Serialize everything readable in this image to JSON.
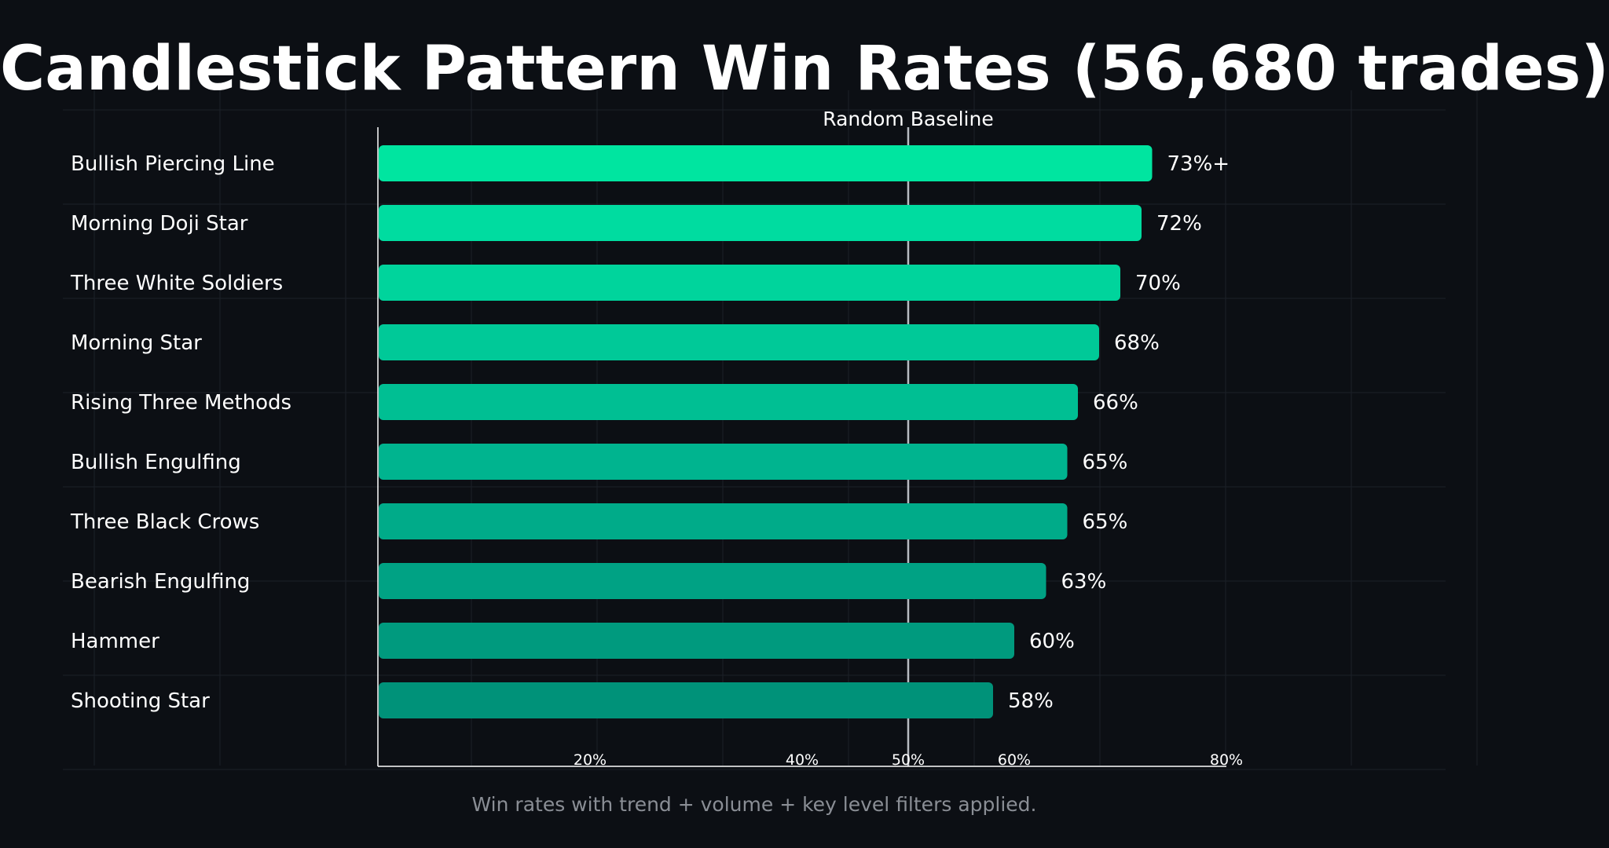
{
  "chart_data": {
    "type": "bar",
    "orientation": "horizontal",
    "title": "Candlestick Pattern Win Rates (56,680 trades)",
    "caption": "Win rates with trend + volume + key level filters applied.",
    "xlabel": "",
    "ylabel": "",
    "xlim": [
      0,
      100
    ],
    "x_ticks": [
      20,
      40,
      50,
      60,
      80
    ],
    "x_tick_labels": [
      "20%",
      "40%",
      "50%",
      "60%",
      "80%"
    ],
    "grid": true,
    "legend": "none",
    "baseline": {
      "value": 50,
      "label": "Random Baseline",
      "color": "#b8bcc2"
    },
    "categories": [
      "Bullish Piercing Line",
      "Morning Doji Star",
      "Three White Soldiers",
      "Morning Star",
      "Rising Three Methods",
      "Bullish Engulfing",
      "Three Black Crows",
      "Bearish Engulfing",
      "Hammer",
      "Shooting Star"
    ],
    "values": [
      73,
      72,
      70,
      68,
      66,
      65,
      65,
      63,
      60,
      58
    ],
    "data_labels": [
      "73%+",
      "72%",
      "70%",
      "68%",
      "66%",
      "65%",
      "65%",
      "63%",
      "60%",
      "58%"
    ],
    "colors": [
      "#00e5a0",
      "#00dca0",
      "#00d49c",
      "#00c998",
      "#00bf93",
      "#00b48f",
      "#00ab89",
      "#00a284",
      "#009a7e",
      "#009279"
    ],
    "background": "#0c0f14",
    "text_color": "#ffffff",
    "grid_color": "#1c2128"
  }
}
